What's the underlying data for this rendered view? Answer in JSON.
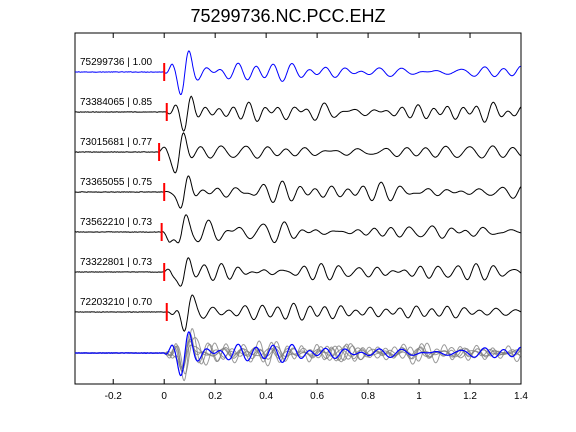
{
  "chart_data": {
    "type": "line",
    "title": "75299736.NC.PCC.EHZ",
    "xlabel": "",
    "ylabel": "",
    "xlim": [
      -0.35,
      1.4
    ],
    "x_ticks": [
      -0.2,
      0,
      0.2,
      0.4,
      0.6,
      0.8,
      1,
      1.2,
      1.4
    ],
    "x_tick_labels": [
      "-0.2",
      "0",
      "0.2",
      "0.4",
      "0.6",
      "0.8",
      "1",
      "1.2",
      "1.4"
    ],
    "y_ticks_shown": false,
    "grid": false,
    "legend": "none",
    "series": [
      {
        "name": "75299736 | 1.00",
        "color": "#0000ff",
        "onset": 0.0,
        "pick": 0.0
      },
      {
        "name": "73384065 | 0.85",
        "color": "#000000",
        "onset": 0.01,
        "pick": 0.01
      },
      {
        "name": "73015681 | 0.77",
        "color": "#000000",
        "onset": -0.02,
        "pick": -0.02
      },
      {
        "name": "73365055 | 0.75",
        "color": "#000000",
        "onset": 0.0,
        "pick": 0.0
      },
      {
        "name": "73562210 | 0.73",
        "color": "#000000",
        "onset": -0.01,
        "pick": -0.01
      },
      {
        "name": "73322801 | 0.73",
        "color": "#000000",
        "onset": 0.0,
        "pick": 0.0
      },
      {
        "name": "72203210 | 0.70",
        "color": "#000000",
        "onset": 0.01,
        "pick": 0.01
      }
    ],
    "stack_overlay": {
      "colors": [
        "#808080",
        "#0000ff"
      ]
    },
    "pick_color": "#ff0000"
  }
}
